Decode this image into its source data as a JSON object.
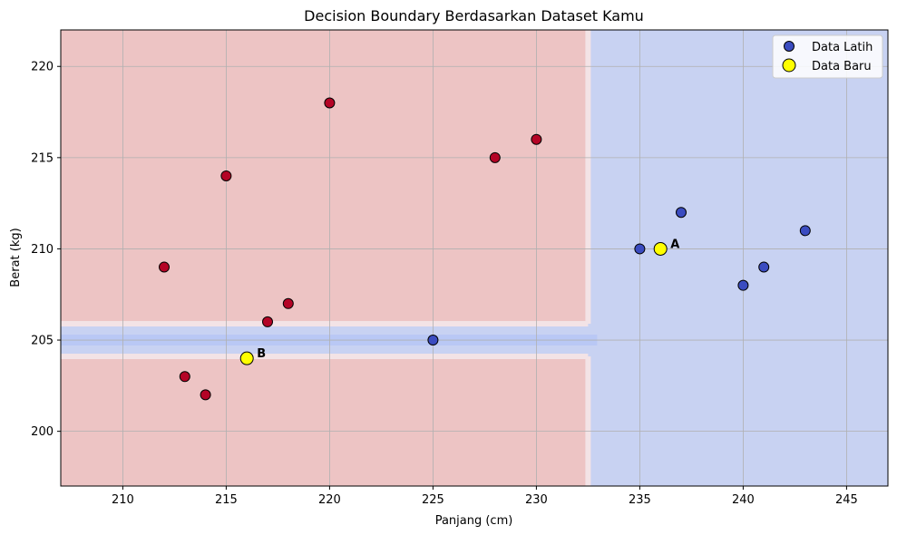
{
  "chart_data": {
    "type": "scatter",
    "title": "Decision Boundary Berdasarkan Dataset Kamu",
    "xlabel": "Panjang (cm)",
    "ylabel": "Berat (kg)",
    "xlim": [
      207,
      247
    ],
    "ylim": [
      197,
      222
    ],
    "xticks": [
      210,
      215,
      220,
      225,
      230,
      235,
      240,
      245
    ],
    "yticks": [
      200,
      205,
      210,
      215,
      220
    ],
    "grid": true,
    "legend_position": "top-right",
    "colors": {
      "region_class_red": "#edc4c4",
      "region_class_blue": "#c8d2f2",
      "point_red": "#b40426",
      "point_blue": "#3b4cc0",
      "point_new": "#ffff00"
    },
    "decision_regions": {
      "boundary_x": 232.5,
      "corridor_y": 205,
      "left_region": "red",
      "right_region": "blue",
      "corridor_region": "blue"
    },
    "series": [
      {
        "name": "Data Latih",
        "points": [
          {
            "x": 212,
            "y": 209,
            "class": "red"
          },
          {
            "x": 213,
            "y": 203,
            "class": "red"
          },
          {
            "x": 214,
            "y": 202,
            "class": "red"
          },
          {
            "x": 215,
            "y": 214,
            "class": "red"
          },
          {
            "x": 217,
            "y": 206,
            "class": "red"
          },
          {
            "x": 218,
            "y": 207,
            "class": "red"
          },
          {
            "x": 220,
            "y": 218,
            "class": "red"
          },
          {
            "x": 228,
            "y": 215,
            "class": "red"
          },
          {
            "x": 230,
            "y": 216,
            "class": "red"
          },
          {
            "x": 225,
            "y": 205,
            "class": "blue"
          },
          {
            "x": 235,
            "y": 210,
            "class": "blue"
          },
          {
            "x": 237,
            "y": 212,
            "class": "blue"
          },
          {
            "x": 240,
            "y": 208,
            "class": "blue"
          },
          {
            "x": 241,
            "y": 209,
            "class": "blue"
          },
          {
            "x": 243,
            "y": 211,
            "class": "blue"
          }
        ]
      },
      {
        "name": "Data Baru",
        "points": [
          {
            "x": 236,
            "y": 210,
            "label": "A"
          },
          {
            "x": 216,
            "y": 204,
            "label": "B"
          }
        ]
      }
    ]
  }
}
